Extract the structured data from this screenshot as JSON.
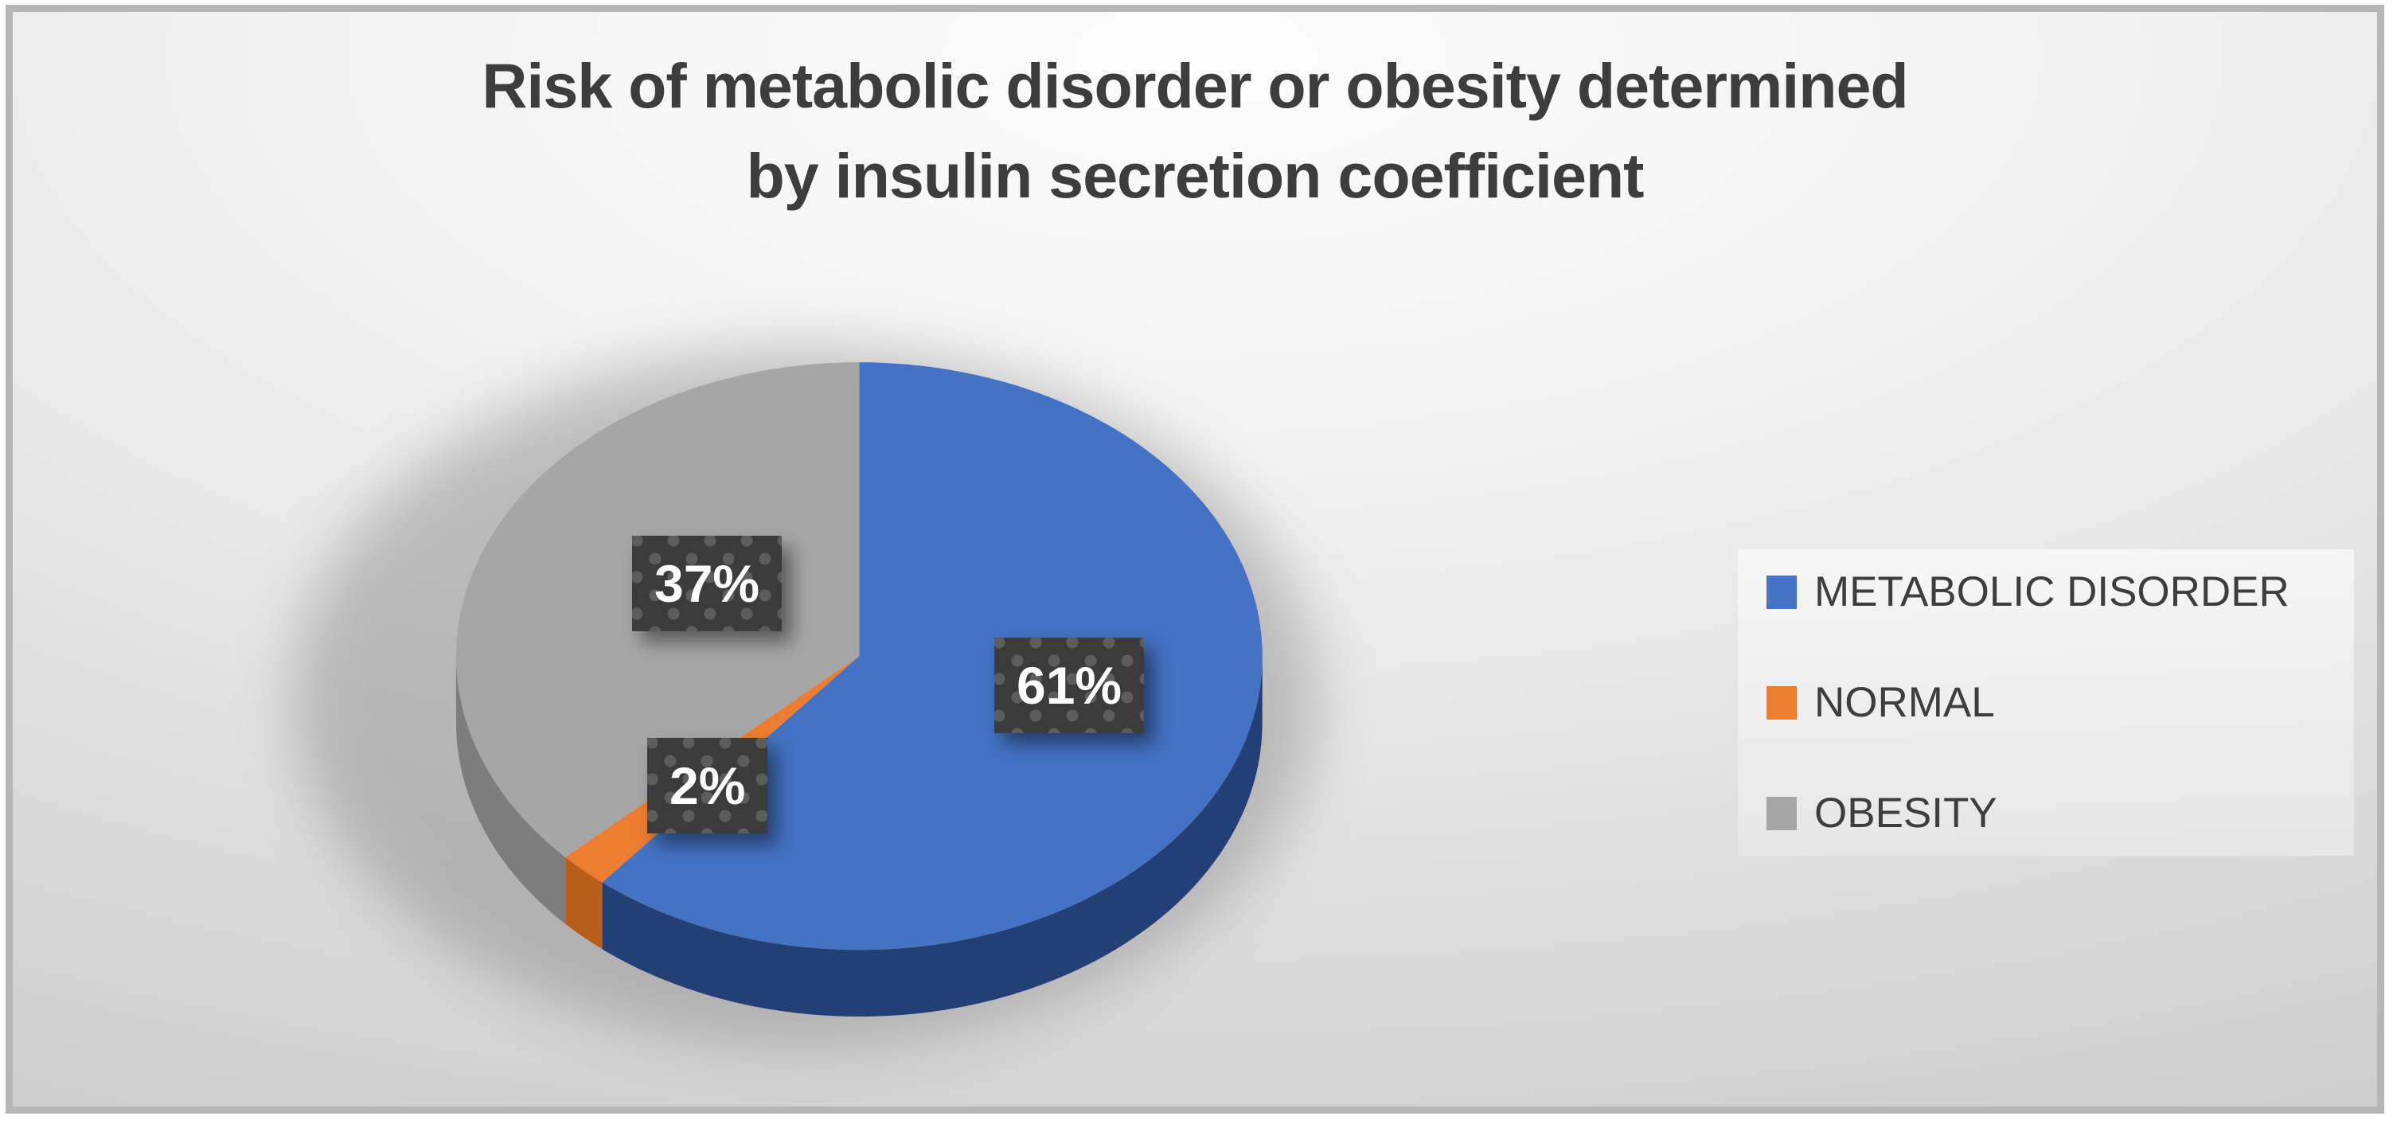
{
  "chart_data": {
    "type": "pie",
    "projection": "3d",
    "title": "Risk of metabolic disorder or obesity determined by insulin secretion coefficient",
    "title_lines": [
      "Risk of metabolic disorder or obesity determined",
      "by insulin secretion coefficient"
    ],
    "total": 100,
    "start_angle_deg": 0,
    "direction": "clockwise",
    "legend_position": "right",
    "label_style": "dark-dotted-box",
    "series": [
      {
        "name": "METABOLIC DISORDER",
        "value": 61,
        "data_label": "61%",
        "color": "#4472C4",
        "side_color": "#223F76"
      },
      {
        "name": "NORMAL",
        "value": 2,
        "data_label": "2%",
        "color": "#ED7D31",
        "side_color": "#B85E1B"
      },
      {
        "name": "OBESITY",
        "value": 37,
        "data_label": "37%",
        "color": "#A6A6A6",
        "side_color": "#7D7D7D"
      }
    ],
    "colors": {
      "title_text": "#3d3d3d",
      "legend_text": "#3d3d3d",
      "label_box": "#3b3b3b",
      "label_text": "#ffffff"
    }
  }
}
